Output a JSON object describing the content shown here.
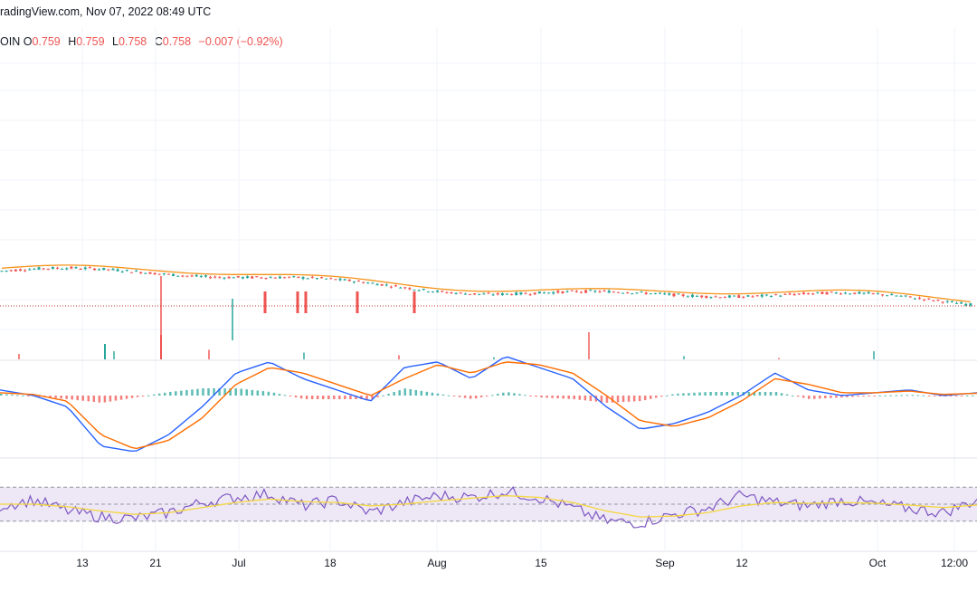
{
  "header": {
    "source_date": "radingView.com, Nov 07, 2022 08:49 UTC"
  },
  "ohlc": {
    "symbol_fragment": "OIN",
    "open_label": "O",
    "open_value": "0.759",
    "high_label": "H",
    "high_value": "0.759",
    "low_label": "L",
    "low_value": "0.758",
    "close_label": "C",
    "close_value": "0.758",
    "change": "−0.007 (−0.92%)"
  },
  "colors": {
    "up": "#26a69a",
    "down": "#ef5350",
    "ma": "#f7931a",
    "macd": "#2962ff",
    "signal": "#ff6d00",
    "rsi": "#7e57c2",
    "rsi_ma": "#f5d63d",
    "rsi_band": "#ede7f6",
    "price_line": "#c0392b"
  },
  "chart_data": [
    {
      "type": "candlestick",
      "title": "",
      "x_ticks": [
        "13",
        "21",
        "Jul",
        "18",
        "Aug",
        "15",
        "Sep",
        "12",
        "Oct",
        "12:00"
      ],
      "approx_close_start": 0.99,
      "approx_close_end": 0.758,
      "last_close": 0.758,
      "notes": "price declines from ~1.0 to ~0.76 over the visible range"
    },
    {
      "type": "bar",
      "title": "",
      "series": [
        {
          "values": [
            0.2,
            0.3,
            0.35,
            0.25,
            0.15,
            0.08,
            1.0,
            0.12,
            0.05,
            0.3
          ]
        }
      ]
    },
    {
      "type": "line",
      "title": "",
      "series": [
        {
          "values": [
            0.1,
            0.0,
            -0.2,
            -0.9,
            -1.0,
            -0.7,
            -0.2,
            0.4,
            0.6,
            0.3,
            0.1,
            -0.1,
            0.5,
            0.6,
            0.3,
            0.7,
            0.5,
            0.3,
            -0.2,
            -0.6,
            -0.5,
            -0.3,
            0.0,
            0.4,
            0.1,
            0.0,
            0.05,
            0.1,
            0.0,
            0.05
          ]
        },
        {
          "values": [
            0.05,
            0.02,
            -0.1,
            -0.7,
            -0.95,
            -0.8,
            -0.4,
            0.2,
            0.5,
            0.4,
            0.2,
            0.0,
            0.3,
            0.55,
            0.4,
            0.6,
            0.55,
            0.4,
            0.0,
            -0.45,
            -0.55,
            -0.4,
            -0.1,
            0.3,
            0.2,
            0.05,
            0.05,
            0.08,
            0.02,
            0.04
          ]
        }
      ]
    },
    {
      "type": "line",
      "title": "",
      "bands": [
        30,
        50,
        70
      ],
      "series": [
        {
          "values": [
            48,
            55,
            42,
            35,
            33,
            40,
            52,
            58,
            62,
            48,
            55,
            40,
            52,
            60,
            58,
            65,
            58,
            45,
            30,
            28,
            38,
            45,
            60,
            52,
            48,
            55,
            50,
            45,
            40,
            55
          ]
        },
        {
          "values": [
            50,
            50,
            47,
            42,
            38,
            40,
            46,
            52,
            56,
            53,
            52,
            48,
            50,
            54,
            57,
            60,
            58,
            52,
            42,
            35,
            36,
            40,
            48,
            52,
            51,
            52,
            51,
            49,
            46,
            49
          ]
        }
      ]
    }
  ]
}
